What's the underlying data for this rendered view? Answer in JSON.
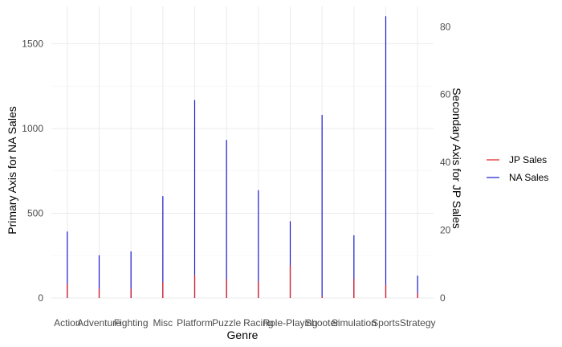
{
  "chart_data": {
    "type": "bar",
    "title": "",
    "xlabel": "Genre",
    "ylabel": "Primary Axis for NA Sales",
    "y2label": "Secondary Axis for JP Sales",
    "categories": [
      "Action",
      "Adventure",
      "Fighting",
      "Misc",
      "Platform",
      "Puzzle",
      "Racing",
      "Role-Playing",
      "Shooter",
      "Simulation",
      "Sports",
      "Strategy"
    ],
    "ylim": [
      0,
      1720
    ],
    "yticks": [
      0,
      500,
      1000,
      1500
    ],
    "y2lim": [
      0,
      86
    ],
    "y2ticks": [
      0,
      20,
      40,
      60,
      80
    ],
    "series": [
      {
        "name": "JP Sales",
        "axis": "secondary",
        "color": "#e41a1c",
        "values": [
          4.2,
          2.7,
          2.8,
          4.7,
          6.8,
          5.6,
          4.8,
          9.6,
          0.5,
          5.6,
          3.8,
          1.5
        ]
      },
      {
        "name": "NA Sales",
        "axis": "primary",
        "color": "#1a1acd",
        "values": [
          392,
          252,
          275,
          601,
          1168,
          932,
          636,
          453,
          1080,
          370,
          1662,
          132
        ]
      }
    ],
    "grid": true,
    "legend_position": "right"
  }
}
